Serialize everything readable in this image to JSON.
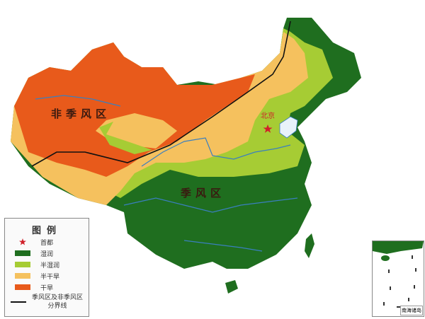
{
  "labels": {
    "non_monsoon": "非季风区",
    "monsoon": "季风区",
    "capital": "北京"
  },
  "legend": {
    "title": "图例",
    "items": [
      {
        "label": "首都",
        "symbol": "star",
        "color": "#d0202a"
      },
      {
        "label": "湿润",
        "color": "#1f6e1f"
      },
      {
        "label": "半湿润",
        "color": "#a6cc34"
      },
      {
        "label": "半干旱",
        "color": "#f5c15e"
      },
      {
        "label": "干旱",
        "color": "#e85a1b"
      },
      {
        "label": "季风区及非季风区分界线",
        "symbol": "line",
        "color": "#111111"
      }
    ]
  },
  "inset": {
    "label": "南海诸岛"
  },
  "colors": {
    "humid": "#1f6e1f",
    "semi_humid": "#a6cc34",
    "semi_arid": "#f5c15e",
    "arid": "#e85a1b",
    "river": "#3a7fbf",
    "boundary": "#111111"
  }
}
